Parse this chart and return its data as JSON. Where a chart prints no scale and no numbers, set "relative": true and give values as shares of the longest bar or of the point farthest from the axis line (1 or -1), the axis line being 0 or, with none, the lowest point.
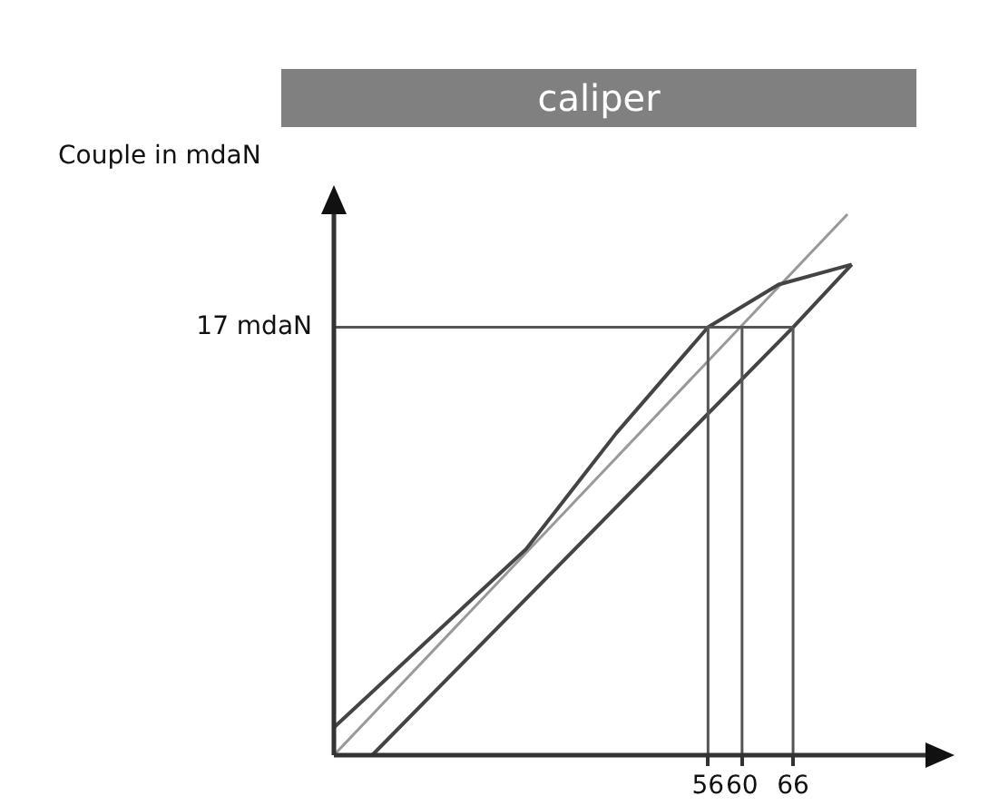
{
  "chart_data": {
    "type": "line",
    "title": "caliper",
    "ylabel": "Couple in mdaN",
    "relative": true,
    "series": [
      {
        "color": "#444444",
        "x": [
          16.5,
          66,
          72.9
        ],
        "values": [
          0,
          0.791,
          0.907
        ]
      },
      {
        "color": "#444444",
        "x": [
          72.9,
          64.3,
          56,
          45.2,
          34.6,
          12
        ],
        "values": [
          0.907,
          0.87,
          0.791,
          0.595,
          0.381,
          0.051
        ]
      },
      {
        "color": "#999999",
        "x": [
          12,
          72.4
        ],
        "values": [
          0,
          1
        ]
      }
    ],
    "xlim": [
      12,
      82
    ],
    "xticks": [
      56,
      60,
      66
    ],
    "ref_lines": [
      {
        "axis": "x",
        "value": 56
      },
      {
        "axis": "x",
        "value": 60
      },
      {
        "axis": "x",
        "value": 66
      },
      {
        "axis": "y",
        "value": 0.791,
        "label": "17 mdaN"
      }
    ],
    "grid": false,
    "legend": false,
    "marker": "none",
    "line_style": "solid"
  }
}
